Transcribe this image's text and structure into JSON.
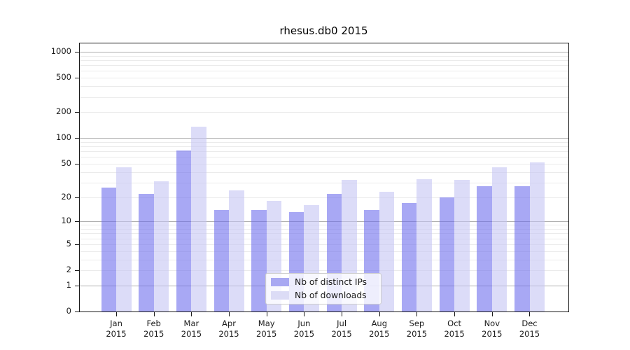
{
  "title": "rhesus.db0 2015",
  "chart_data": {
    "type": "bar",
    "title": "rhesus.db0 2015",
    "categories": [
      "Jan",
      "Feb",
      "Mar",
      "Apr",
      "May",
      "Jun",
      "Jul",
      "Aug",
      "Sep",
      "Oct",
      "Nov",
      "Dec"
    ],
    "x_sublabel": "2015",
    "series": [
      {
        "name": "Nb of distinct IPs",
        "color": "#a8a8f2",
        "fill": "rgba(110,110,237,0.6)",
        "values": [
          26,
          22,
          72,
          14,
          14,
          13,
          22,
          14,
          17,
          20,
          27,
          27
        ]
      },
      {
        "name": "Nb of downloads",
        "color": "#dcdcf6",
        "fill": "rgba(197,197,243,0.6)",
        "values": [
          45,
          31,
          135,
          24,
          18,
          16,
          32,
          23,
          33,
          32,
          45,
          52
        ]
      }
    ],
    "yscale": "log1p",
    "yticks": [
      0,
      1,
      2,
      5,
      10,
      20,
      50,
      100,
      200,
      500,
      1000
    ],
    "ylim": [
      0,
      1200
    ],
    "xlabel": "",
    "ylabel": "",
    "grid": true,
    "legend_position": "lower center"
  }
}
